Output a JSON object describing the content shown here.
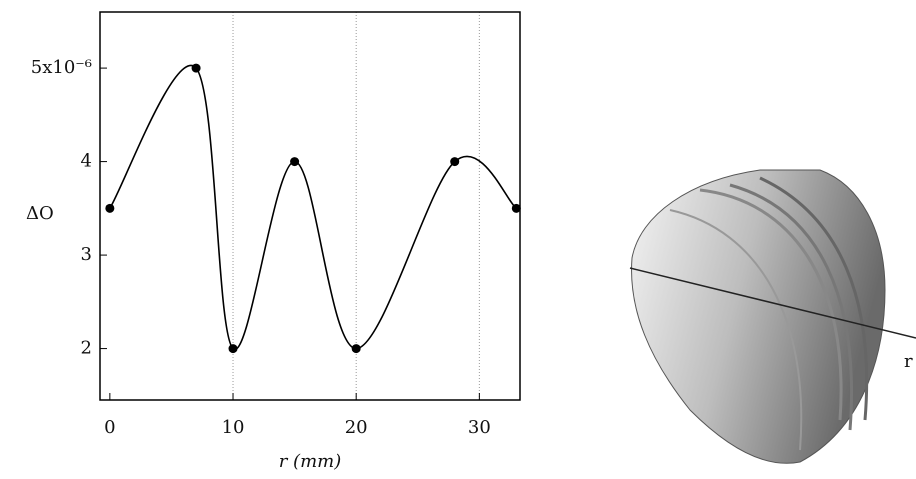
{
  "chart_data": {
    "type": "line",
    "x": [
      0,
      7,
      10,
      15,
      20,
      28,
      33
    ],
    "series": [
      {
        "values": [
          3.5,
          5,
          2,
          4,
          2,
          4,
          3.5
        ],
        "color": "#000000"
      }
    ],
    "xlabel": "r (mm)",
    "ylabel": "ΔO",
    "xlim": [
      -0.8,
      33.3
    ],
    "ylim": [
      1.45,
      5.6
    ],
    "xticks": [
      0,
      10,
      20,
      30
    ],
    "yticks": [
      2,
      3,
      4,
      {
        "value": 5,
        "label": "5x10⁻⁶"
      }
    ],
    "grid": true,
    "smooth": true,
    "markers": true
  },
  "shell": {
    "axis_label": "r"
  }
}
